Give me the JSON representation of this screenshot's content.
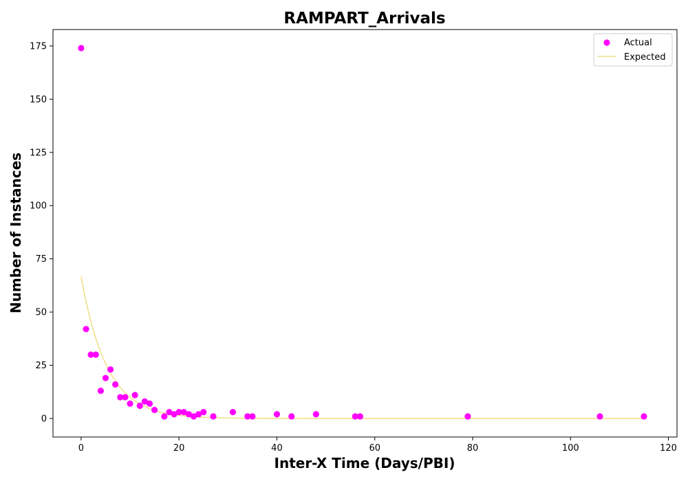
{
  "chart_data": {
    "type": "scatter",
    "title": "RAMPART_Arrivals",
    "xlabel": "Inter-X Time (Days/PBI)",
    "ylabel": "Number of Instances",
    "xlim": [
      -5.75,
      121.75
    ],
    "ylim": [
      -8.7,
      182.7
    ],
    "xticks": [
      0,
      20,
      40,
      60,
      80,
      100,
      120
    ],
    "yticks": [
      0,
      25,
      50,
      75,
      100,
      125,
      150,
      175
    ],
    "grid": false,
    "legend_position": "top-right",
    "series": [
      {
        "name": "Actual",
        "type": "scatter",
        "color": "#ff00ff",
        "points": [
          [
            0,
            174
          ],
          [
            1,
            42
          ],
          [
            2,
            30
          ],
          [
            3,
            30
          ],
          [
            4,
            13
          ],
          [
            5,
            19
          ],
          [
            6,
            23
          ],
          [
            7,
            16
          ],
          [
            8,
            10
          ],
          [
            9,
            10
          ],
          [
            10,
            7
          ],
          [
            11,
            11
          ],
          [
            12,
            6
          ],
          [
            13,
            8
          ],
          [
            14,
            7
          ],
          [
            15,
            4
          ],
          [
            17,
            1
          ],
          [
            18,
            3
          ],
          [
            19,
            2
          ],
          [
            20,
            3
          ],
          [
            21,
            3
          ],
          [
            22,
            2
          ],
          [
            23,
            1
          ],
          [
            24,
            2
          ],
          [
            25,
            3
          ],
          [
            27,
            1
          ],
          [
            31,
            3
          ],
          [
            34,
            1
          ],
          [
            35,
            1
          ],
          [
            40,
            2
          ],
          [
            43,
            1
          ],
          [
            48,
            2
          ],
          [
            56,
            1
          ],
          [
            57,
            1
          ],
          [
            79,
            1
          ],
          [
            106,
            1
          ],
          [
            115,
            1
          ]
        ]
      },
      {
        "name": "Expected",
        "type": "line",
        "color": "#f0e08c",
        "model": "exponential",
        "amplitude": 66.6,
        "rate": 0.19,
        "x_range": [
          0,
          115
        ]
      }
    ]
  }
}
